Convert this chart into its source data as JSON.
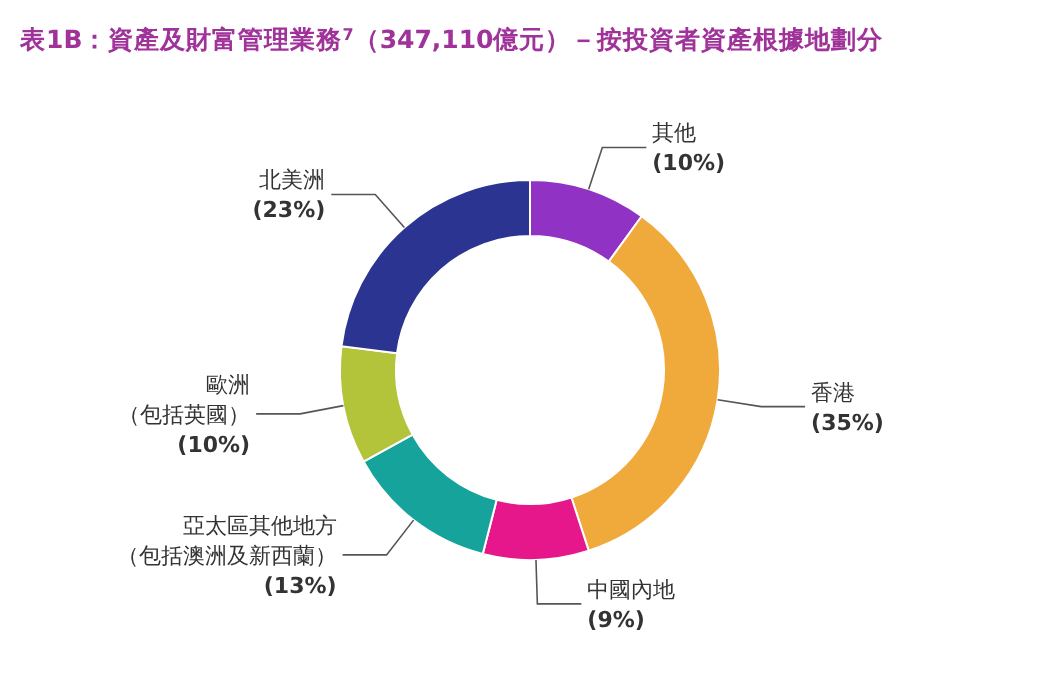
{
  "chart_data": {
    "type": "donut",
    "title": "表1B：資產及財富管理業務$^{7}$（347,110億元）－按投資者資產根據地劃分",
    "categories": [
      "其他",
      "香港",
      "中國內地",
      "亞太區其他地方（包括澳洲及新西蘭）",
      "歐洲（包括英國）",
      "北美洲"
    ],
    "values": [
      10,
      35,
      9,
      13,
      10,
      23
    ],
    "value_labels": [
      "(10%)",
      "(35%)",
      "(9%)",
      "(13%)",
      "(10%)",
      "(23%)"
    ],
    "colors": [
      "#9033c4",
      "#f0aa3c",
      "#e5178a",
      "#16a39b",
      "#b3c43a",
      "#2b3490"
    ]
  }
}
